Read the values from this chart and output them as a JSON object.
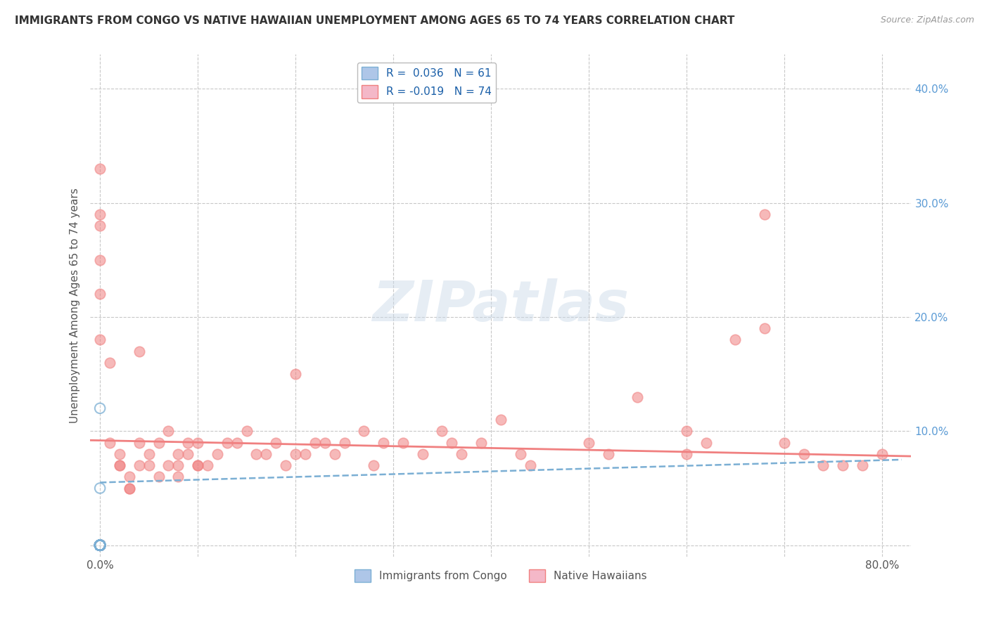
{
  "title": "IMMIGRANTS FROM CONGO VS NATIVE HAWAIIAN UNEMPLOYMENT AMONG AGES 65 TO 74 YEARS CORRELATION CHART",
  "source": "Source: ZipAtlas.com",
  "ylabel": "Unemployment Among Ages 65 to 74 years",
  "x_ticks": [
    0.0,
    0.1,
    0.2,
    0.3,
    0.4,
    0.5,
    0.6,
    0.7,
    0.8
  ],
  "x_tick_labels": [
    "0.0%",
    "",
    "",
    "",
    "",
    "",
    "",
    "",
    "80.0%"
  ],
  "y_ticks": [
    0.0,
    0.1,
    0.2,
    0.3,
    0.4
  ],
  "y_tick_labels": [
    "",
    "10.0%",
    "20.0%",
    "30.0%",
    "40.0%"
  ],
  "xlim": [
    -0.01,
    0.83
  ],
  "ylim": [
    -0.01,
    0.43
  ],
  "watermark": "ZIPatlas",
  "background_color": "#ffffff",
  "grid_color": "#c8c8c8",
  "congo_scatter_color": "#7bafd4",
  "hawaiian_scatter_color": "#f08080",
  "congo_trend_color": "#7bafd4",
  "hawaiian_trend_color": "#f08080",
  "congo_legend_label": "R =  0.036   N = 61",
  "hawaiian_legend_label": "R = -0.019   N = 74",
  "bottom_legend_congo": "Immigrants from Congo",
  "bottom_legend_hawaiian": "Native Hawaiians",
  "congo_trend_x": [
    0.0,
    0.82
  ],
  "congo_trend_y": [
    0.055,
    0.075
  ],
  "hawaiian_trend_x": [
    -0.01,
    0.83
  ],
  "hawaiian_trend_y": [
    0.092,
    0.078
  ],
  "congo_x": [
    0.0,
    0.0,
    0.0,
    0.0,
    0.0,
    0.0,
    0.0,
    0.0,
    0.0,
    0.0,
    0.0,
    0.0,
    0.0,
    0.0,
    0.0,
    0.0,
    0.0,
    0.0,
    0.0,
    0.0,
    0.0,
    0.0,
    0.0,
    0.0,
    0.0,
    0.0,
    0.0,
    0.0,
    0.0,
    0.0,
    0.0,
    0.0,
    0.0,
    0.0,
    0.0,
    0.0,
    0.0,
    0.0,
    0.0,
    0.0,
    0.0,
    0.0,
    0.0,
    0.0,
    0.0,
    0.0,
    0.0,
    0.0,
    0.0,
    0.0,
    0.0,
    0.0,
    0.0,
    0.0,
    0.0,
    0.0,
    0.0,
    0.0,
    0.0,
    0.0,
    0.0
  ],
  "congo_y": [
    0.0,
    0.0,
    0.0,
    0.0,
    0.0,
    0.0,
    0.0,
    0.0,
    0.0,
    0.0,
    0.0,
    0.0,
    0.0,
    0.0,
    0.0,
    0.0,
    0.0,
    0.0,
    0.0,
    0.0,
    0.0,
    0.0,
    0.0,
    0.0,
    0.0,
    0.0,
    0.0,
    0.0,
    0.0,
    0.0,
    0.0,
    0.0,
    0.0,
    0.0,
    0.0,
    0.0,
    0.0,
    0.0,
    0.0,
    0.0,
    0.0,
    0.0,
    0.0,
    0.0,
    0.12,
    0.0,
    0.0,
    0.0,
    0.0,
    0.0,
    0.05,
    0.0,
    0.0,
    0.0,
    0.0,
    0.0,
    0.0,
    0.0,
    0.0,
    0.0,
    0.0
  ],
  "hawaiian_x": [
    0.0,
    0.0,
    0.0,
    0.0,
    0.0,
    0.0,
    0.01,
    0.01,
    0.02,
    0.02,
    0.02,
    0.03,
    0.03,
    0.04,
    0.04,
    0.05,
    0.05,
    0.06,
    0.06,
    0.07,
    0.07,
    0.08,
    0.08,
    0.09,
    0.09,
    0.1,
    0.1,
    0.11,
    0.12,
    0.13,
    0.14,
    0.15,
    0.16,
    0.17,
    0.18,
    0.19,
    0.2,
    0.21,
    0.22,
    0.23,
    0.24,
    0.25,
    0.27,
    0.29,
    0.31,
    0.33,
    0.35,
    0.37,
    0.39,
    0.41,
    0.43,
    0.5,
    0.55,
    0.6,
    0.62,
    0.65,
    0.68,
    0.7,
    0.72,
    0.74,
    0.76,
    0.78,
    0.8,
    0.68,
    0.6,
    0.52,
    0.44,
    0.36,
    0.28,
    0.2,
    0.1,
    0.08,
    0.04,
    0.03
  ],
  "hawaiian_y": [
    0.33,
    0.29,
    0.28,
    0.25,
    0.22,
    0.18,
    0.16,
    0.09,
    0.08,
    0.07,
    0.07,
    0.06,
    0.05,
    0.09,
    0.17,
    0.07,
    0.08,
    0.09,
    0.06,
    0.1,
    0.07,
    0.07,
    0.06,
    0.08,
    0.09,
    0.07,
    0.07,
    0.07,
    0.08,
    0.09,
    0.09,
    0.1,
    0.08,
    0.08,
    0.09,
    0.07,
    0.08,
    0.08,
    0.09,
    0.09,
    0.08,
    0.09,
    0.1,
    0.09,
    0.09,
    0.08,
    0.1,
    0.08,
    0.09,
    0.11,
    0.08,
    0.09,
    0.13,
    0.1,
    0.09,
    0.18,
    0.19,
    0.09,
    0.08,
    0.07,
    0.07,
    0.07,
    0.08,
    0.29,
    0.08,
    0.08,
    0.07,
    0.09,
    0.07,
    0.15,
    0.09,
    0.08,
    0.07,
    0.05
  ]
}
